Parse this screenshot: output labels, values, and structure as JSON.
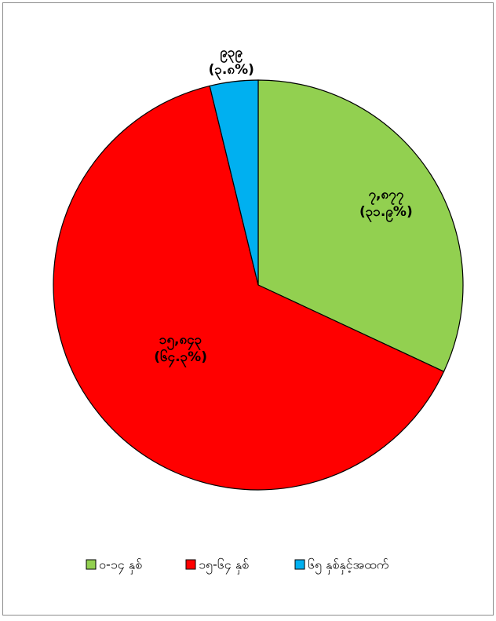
{
  "chart_data": {
    "type": "pie",
    "categories": [
      "၀-၁၄ နှစ်",
      "၁၅-၆၄ နှစ်",
      "၆၅ နှစ်နှင့်အထက်"
    ],
    "values": [
      7877,
      15843,
      939
    ],
    "value_labels": [
      "၇,၈၇၇",
      "၁၅,၈၄၃",
      "၉၃၉"
    ],
    "percent_labels": [
      "(၃၁.၉%)",
      "(၆၄.၃%)",
      "(၃.၈%)"
    ],
    "colors": [
      "#92d050",
      "#ff0000",
      "#00b0f0"
    ],
    "legend": "bottom"
  }
}
